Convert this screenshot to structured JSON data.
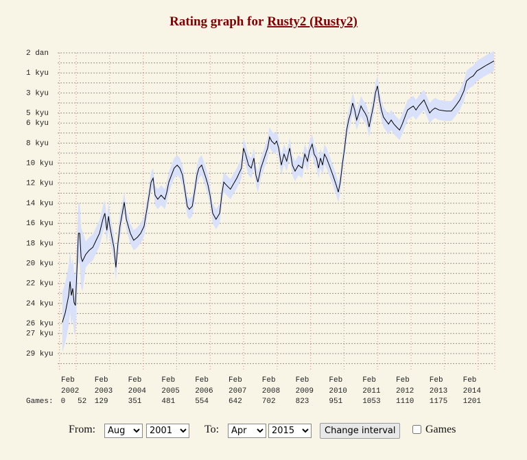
{
  "header": {
    "title": "Rating graph for",
    "player": "Rusty2 (Rusty2)"
  },
  "chart_data": {
    "type": "line",
    "xlim": [
      2001.583,
      2014.583
    ],
    "xticks": [
      {
        "value": 2002.083,
        "label": [
          "Feb",
          "2002"
        ]
      },
      {
        "value": 2003.083,
        "label": [
          "Feb",
          "2003"
        ]
      },
      {
        "value": 2004.083,
        "label": [
          "Feb",
          "2004"
        ]
      },
      {
        "value": 2005.083,
        "label": [
          "Feb",
          "2005"
        ]
      },
      {
        "value": 2006.083,
        "label": [
          "Feb",
          "2006"
        ]
      },
      {
        "value": 2007.083,
        "label": [
          "Feb",
          "2007"
        ]
      },
      {
        "value": 2008.083,
        "label": [
          "Feb",
          "2008"
        ]
      },
      {
        "value": 2009.083,
        "label": [
          "Feb",
          "2009"
        ]
      },
      {
        "value": 2010.083,
        "label": [
          "Feb",
          "2010"
        ]
      },
      {
        "value": 2011.083,
        "label": [
          "Feb",
          "2011"
        ]
      },
      {
        "value": 2012.083,
        "label": [
          "Feb",
          "2012"
        ]
      },
      {
        "value": 2013.083,
        "label": [
          "Feb",
          "2013"
        ]
      },
      {
        "value": 2014.083,
        "label": [
          "Feb",
          "2014"
        ]
      }
    ],
    "ylim": [
      -30,
      2
    ],
    "yticks": [
      {
        "value": 2,
        "label": "2 dan"
      },
      {
        "value": 0,
        "label": "1 kyu"
      },
      {
        "value": -2,
        "label": "3 kyu"
      },
      {
        "value": -4,
        "label": "5 kyu"
      },
      {
        "value": -5,
        "label": "6 kyu"
      },
      {
        "value": -7,
        "label": "8 kyu"
      },
      {
        "value": -9,
        "label": "10 kyu"
      },
      {
        "value": -11,
        "label": "12 kyu"
      },
      {
        "value": -13,
        "label": "14 kyu"
      },
      {
        "value": -15,
        "label": "16 kyu"
      },
      {
        "value": -17,
        "label": "18 kyu"
      },
      {
        "value": -19,
        "label": "20 kyu"
      },
      {
        "value": -21,
        "label": "22 kyu"
      },
      {
        "value": -23,
        "label": "24 kyu"
      },
      {
        "value": -25,
        "label": "26 kyu"
      },
      {
        "value": -26,
        "label": "27 kyu"
      },
      {
        "value": -28,
        "label": "29 kyu"
      }
    ],
    "ygrid": [
      2,
      1,
      0,
      -1,
      -2,
      -3,
      -4,
      -5,
      -6,
      -7,
      -8,
      -9,
      -10,
      -11,
      -12,
      -13,
      -14,
      -15,
      -16,
      -17,
      -18,
      -19,
      -20,
      -21,
      -22,
      -23,
      -24,
      -25,
      -26,
      -27,
      -28,
      -29
    ],
    "grid": true,
    "color": "#000000",
    "band_color": "#d8e0fa",
    "x": [
      2001.67,
      2001.76,
      2001.86,
      2001.9,
      2001.94,
      2001.98,
      2002.02,
      2002.06,
      2002.1,
      2002.15,
      2002.19,
      2002.23,
      2002.27,
      2002.37,
      2002.47,
      2002.58,
      2002.68,
      2002.78,
      2002.88,
      2002.94,
      2003.0,
      2003.05,
      2003.09,
      2003.15,
      2003.21,
      2003.27,
      2003.33,
      2003.39,
      2003.46,
      2003.52,
      2003.58,
      2003.64,
      2003.7,
      2003.8,
      2003.91,
      2004.01,
      2004.11,
      2004.21,
      2004.32,
      2004.38,
      2004.44,
      2004.52,
      2004.62,
      2004.73,
      2004.79,
      2004.85,
      2004.93,
      2005.01,
      2005.1,
      2005.18,
      2005.26,
      2005.34,
      2005.4,
      2005.46,
      2005.55,
      2005.63,
      2005.69,
      2005.75,
      2005.83,
      2005.89,
      2005.96,
      2006.02,
      2006.08,
      2006.16,
      2006.26,
      2006.37,
      2006.43,
      2006.49,
      2006.57,
      2006.69,
      2006.88,
      2007.02,
      2007.08,
      2007.14,
      2007.23,
      2007.31,
      2007.39,
      2007.45,
      2007.51,
      2007.6,
      2007.7,
      2007.8,
      2007.86,
      2007.92,
      2008.01,
      2008.07,
      2008.13,
      2008.21,
      2008.29,
      2008.37,
      2008.46,
      2008.54,
      2008.62,
      2008.72,
      2008.83,
      2008.91,
      2008.99,
      2009.05,
      2009.13,
      2009.19,
      2009.26,
      2009.32,
      2009.38,
      2009.44,
      2009.5,
      2009.56,
      2009.64,
      2009.75,
      2009.85,
      2009.91,
      2009.97,
      2010.03,
      2010.1,
      2010.16,
      2010.22,
      2010.28,
      2010.34,
      2010.4,
      2010.46,
      2010.53,
      2010.59,
      2010.65,
      2010.71,
      2010.77,
      2010.83,
      2010.89,
      2010.96,
      2011.02,
      2011.08,
      2011.14,
      2011.2,
      2011.26,
      2011.32,
      2011.41,
      2011.49,
      2011.57,
      2011.65,
      2011.74,
      2011.82,
      2011.9,
      2011.98,
      2012.06,
      2012.15,
      2012.23,
      2012.31,
      2012.39,
      2012.47,
      2012.55,
      2012.64,
      2012.72,
      2012.8,
      2012.92,
      2013.13,
      2013.29,
      2013.41,
      2013.54,
      2013.66,
      2013.74,
      2013.84,
      2013.94,
      2014.05,
      2014.15,
      2014.25,
      2014.35,
      2014.46,
      2014.56
    ],
    "values": [
      -24.9,
      -23.9,
      -22.2,
      -20.8,
      -22.2,
      -21.5,
      -22.9,
      -23.2,
      -20.1,
      -16.0,
      -16.0,
      -18.4,
      -18.8,
      -18.1,
      -17.7,
      -17.4,
      -16.7,
      -16.0,
      -14.6,
      -14.0,
      -15.7,
      -14.3,
      -15.3,
      -16.4,
      -17.4,
      -19.4,
      -17.0,
      -15.3,
      -14.0,
      -12.9,
      -14.6,
      -15.3,
      -16.0,
      -16.7,
      -16.4,
      -16.0,
      -15.3,
      -13.3,
      -10.9,
      -10.5,
      -12.2,
      -12.6,
      -12.2,
      -12.6,
      -11.9,
      -10.9,
      -10.2,
      -9.5,
      -9.2,
      -9.5,
      -10.2,
      -11.9,
      -13.3,
      -13.6,
      -13.3,
      -11.6,
      -10.2,
      -9.5,
      -9.2,
      -9.8,
      -10.5,
      -11.2,
      -12.2,
      -14.0,
      -14.6,
      -14.0,
      -12.2,
      -10.9,
      -11.2,
      -11.6,
      -10.5,
      -9.5,
      -7.5,
      -8.1,
      -9.2,
      -9.5,
      -8.5,
      -10.2,
      -10.9,
      -9.5,
      -8.5,
      -7.5,
      -6.4,
      -6.8,
      -7.1,
      -6.8,
      -7.5,
      -9.2,
      -8.1,
      -8.8,
      -7.5,
      -9.2,
      -9.8,
      -9.2,
      -9.5,
      -8.1,
      -8.8,
      -7.8,
      -7.1,
      -8.1,
      -8.5,
      -9.5,
      -8.5,
      -9.2,
      -8.1,
      -8.5,
      -9.2,
      -10.2,
      -11.2,
      -11.9,
      -10.9,
      -9.2,
      -7.5,
      -5.7,
      -4.7,
      -4.0,
      -3.0,
      -3.7,
      -4.7,
      -4.0,
      -3.3,
      -3.7,
      -4.0,
      -4.4,
      -5.4,
      -4.4,
      -3.3,
      -2.0,
      -1.3,
      -2.7,
      -3.7,
      -4.4,
      -4.7,
      -5.1,
      -4.7,
      -5.1,
      -5.4,
      -5.7,
      -5.1,
      -4.4,
      -3.7,
      -3.5,
      -3.3,
      -3.7,
      -3.3,
      -3.0,
      -2.7,
      -3.3,
      -4.0,
      -3.7,
      -3.5,
      -3.7,
      -3.8,
      -3.8,
      -3.3,
      -2.7,
      -1.8,
      -0.8,
      -0.5,
      -0.3,
      0.2,
      0.4,
      0.6,
      0.8,
      1.0,
      1.2
    ],
    "errors": [
      3,
      3,
      3,
      3,
      3,
      3,
      3,
      3,
      3,
      3,
      3,
      3,
      3,
      1.3,
      1.3,
      1.3,
      1.3,
      1.3,
      1.3,
      1.3,
      1.3,
      1.3,
      1.3,
      1.3,
      1.3,
      1.3,
      1.3,
      1.3,
      1,
      1,
      1,
      1,
      1,
      1,
      1,
      1,
      1,
      1,
      1,
      1,
      1,
      1,
      1,
      1,
      1,
      1,
      1,
      1,
      1,
      1,
      1,
      1,
      1,
      1,
      1,
      1,
      1,
      1,
      1,
      1,
      1,
      1,
      1,
      1,
      1,
      1,
      1,
      1,
      1,
      1,
      1,
      1,
      1,
      1,
      1,
      1,
      1,
      1,
      1,
      1,
      1,
      1,
      1,
      1,
      1,
      1,
      1,
      1,
      1,
      1,
      1,
      1,
      1,
      1,
      1,
      1,
      1,
      1,
      1,
      1,
      1,
      1,
      1,
      1,
      1,
      1,
      1,
      1,
      1,
      1,
      1,
      1,
      1,
      1,
      1,
      1,
      1,
      1,
      1,
      1,
      1,
      1,
      1,
      1,
      1,
      1,
      1,
      1,
      1,
      1,
      1,
      1,
      1,
      1,
      1,
      1,
      1,
      1,
      1,
      1,
      1,
      1,
      1,
      1,
      1,
      1,
      1,
      1,
      1,
      1,
      1,
      1,
      1,
      1,
      1,
      1,
      1,
      1,
      1,
      1,
      1,
      1,
      1,
      1,
      1,
      1
    ]
  },
  "games": {
    "label": "Games:",
    "counts": [
      0,
      52,
      129,
      351,
      481,
      554,
      642,
      702,
      823,
      951,
      1053,
      1110,
      1175,
      1201
    ]
  },
  "form": {
    "from_label": "From:",
    "from_month": "Aug",
    "from_year": "2001",
    "to_label": "To:",
    "to_month": "Apr",
    "to_year": "2015",
    "button": "Change interval",
    "checkbox_label": "Games"
  }
}
